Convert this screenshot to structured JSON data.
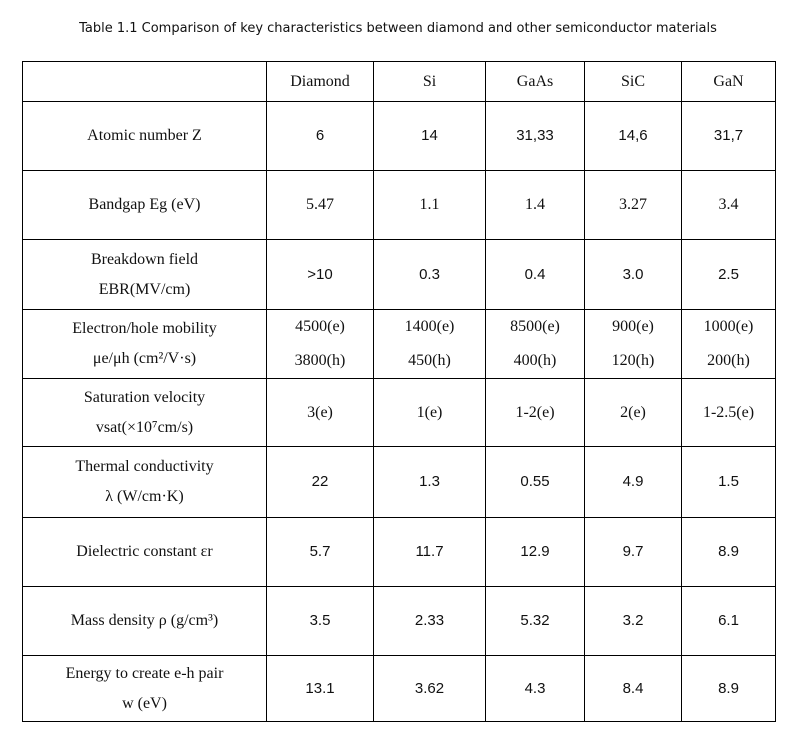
{
  "title": "Table 1.1 Comparison of key characteristics between diamond and other semiconductor materials",
  "columns": [
    "",
    "Diamond",
    "Si",
    "GaAs",
    "SiC",
    "GaN"
  ],
  "rows": [
    {
      "label": [
        "Atomic number   Z"
      ],
      "values": [
        [
          "6"
        ],
        [
          "14"
        ],
        [
          "31,33"
        ],
        [
          "14,6"
        ],
        [
          "31,7"
        ]
      ]
    },
    {
      "label": [
        "Bandgap   Eg (eV)"
      ],
      "values": [
        [
          "5.47"
        ],
        [
          "1.1"
        ],
        [
          "1.4"
        ],
        [
          "3.27"
        ],
        [
          "3.4"
        ]
      ]
    },
    {
      "label": [
        "Breakdown field",
        "EBR(MV/cm)"
      ],
      "values": [
        [
          ">10"
        ],
        [
          "0.3"
        ],
        [
          "0.4"
        ],
        [
          "3.0"
        ],
        [
          "2.5"
        ]
      ]
    },
    {
      "label": [
        "Electron/hole mobility",
        "μe/μh (cm²/V·s)"
      ],
      "values": [
        [
          "4500(e)",
          "3800(h)"
        ],
        [
          "1400(e)",
          "450(h)"
        ],
        [
          "8500(e)",
          "400(h)"
        ],
        [
          "900(e)",
          "120(h)"
        ],
        [
          "1000(e)",
          "200(h)"
        ]
      ]
    },
    {
      "label": [
        "Saturation velocity",
        "vsat(×10⁷cm/s)"
      ],
      "values": [
        [
          "3(e)"
        ],
        [
          "1(e)"
        ],
        [
          "1-2(e)"
        ],
        [
          "2(e)"
        ],
        [
          "1-2.5(e)"
        ]
      ]
    },
    {
      "label": [
        "Thermal conductivity",
        "λ (W/cm·K)"
      ],
      "values": [
        [
          "22"
        ],
        [
          "1.3"
        ],
        [
          "0.55"
        ],
        [
          "4.9"
        ],
        [
          "1.5"
        ]
      ]
    },
    {
      "label": [
        "Dielectric constant   εr"
      ],
      "values": [
        [
          "5.7"
        ],
        [
          "11.7"
        ],
        [
          "12.9"
        ],
        [
          "9.7"
        ],
        [
          "8.9"
        ]
      ]
    },
    {
      "label": [
        "Mass density  ρ (g/cm³)"
      ],
      "values": [
        [
          "3.5"
        ],
        [
          "2.33"
        ],
        [
          "5.32"
        ],
        [
          "3.2"
        ],
        [
          "6.1"
        ]
      ]
    },
    {
      "label": [
        "Energy to create e-h pair",
        "w (eV)"
      ],
      "values": [
        [
          "13.1"
        ],
        [
          "3.62"
        ],
        [
          "4.3"
        ],
        [
          "8.4"
        ],
        [
          "8.9"
        ]
      ]
    }
  ]
}
